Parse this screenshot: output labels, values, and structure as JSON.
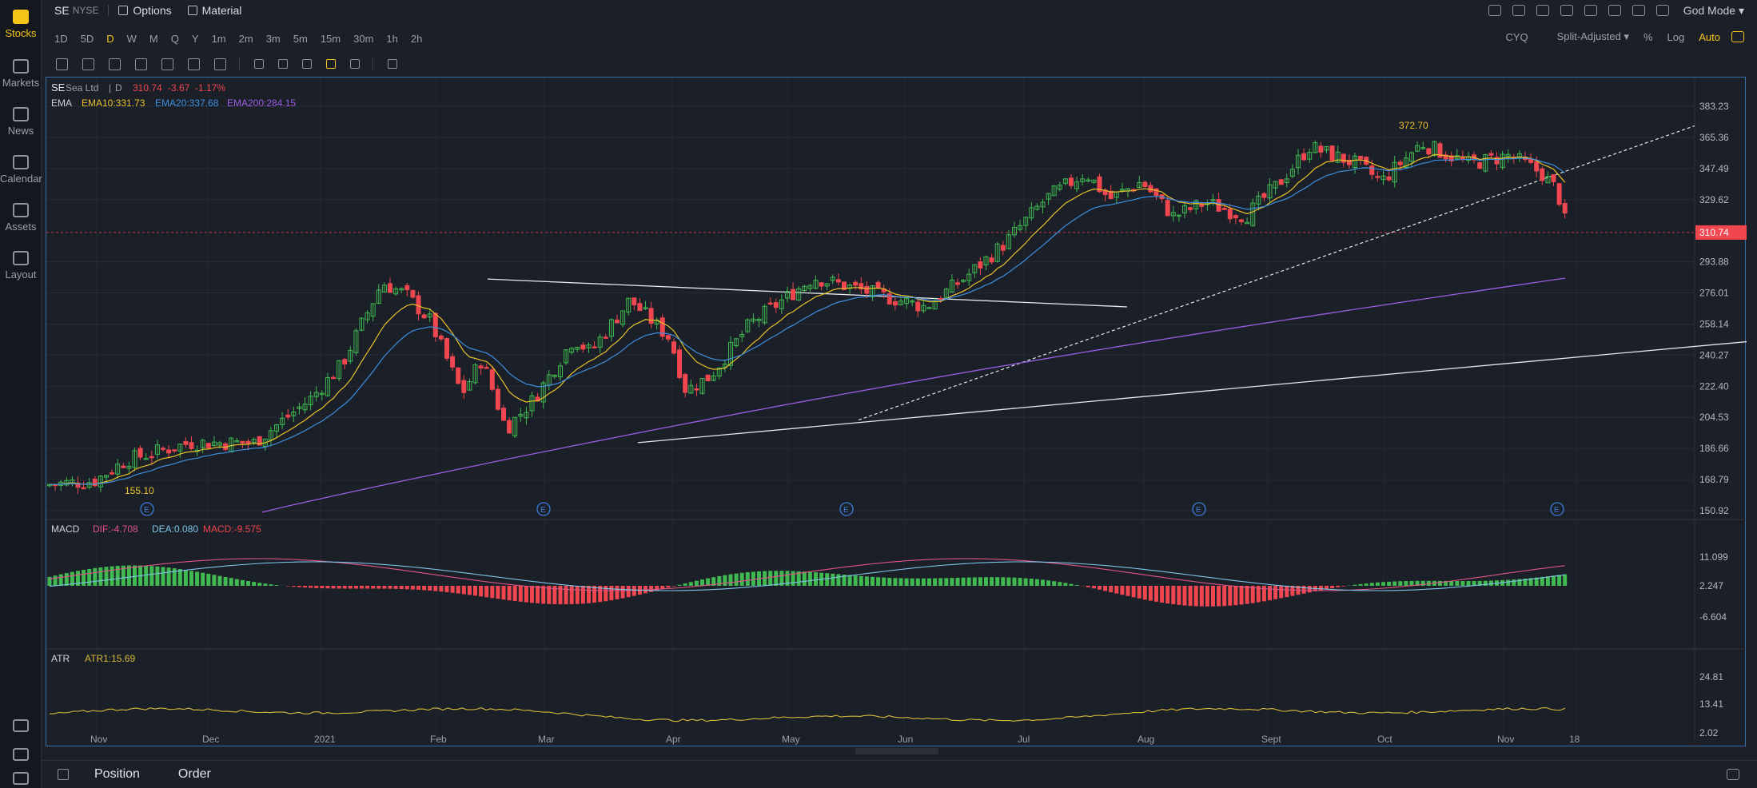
{
  "rail": {
    "items": [
      {
        "label": "Stocks",
        "icon": "stocks-icon"
      },
      {
        "label": "Markets",
        "icon": "markets-icon"
      },
      {
        "label": "News",
        "icon": "news-icon"
      },
      {
        "label": "Calendar",
        "icon": "calendar-icon"
      },
      {
        "label": "Assets",
        "icon": "assets-icon"
      },
      {
        "label": "Layout",
        "icon": "layout-icon"
      }
    ]
  },
  "topbar": {
    "symbol": "SE",
    "exchange": "NYSE",
    "options_label": "Options",
    "material_label": "Material",
    "mode_label": "God Mode"
  },
  "intervals": [
    "1D",
    "5D",
    "D",
    "W",
    "M",
    "Q",
    "Y",
    "1m",
    "2m",
    "3m",
    "5m",
    "15m",
    "30m",
    "1h",
    "2h"
  ],
  "active_interval": "D",
  "chart_options": {
    "cyq": "CYQ",
    "adjust": "Split-Adjusted",
    "percent": "%",
    "log": "Log",
    "auto": "Auto"
  },
  "chart": {
    "title_symbol": "SE",
    "title_name": "Sea Ltd",
    "title_interval": "D",
    "last_price": "310.74",
    "change": "-3.67",
    "change_pct": "-1.17%",
    "ema_label": "EMA",
    "ema10": "EMA10:331.73",
    "ema20": "EMA20:337.68",
    "ema200": "EMA200:284.15",
    "high_label": "372.70",
    "low_label": "155.10",
    "price_ticks": [
      "383.23",
      "365.36",
      "347.49",
      "329.62",
      "310.74",
      "293.88",
      "276.01",
      "258.14",
      "240.27",
      "222.40",
      "204.53",
      "186.66",
      "168.79",
      "150.92"
    ],
    "earnings_marker": "E",
    "macd_label": "MACD",
    "macd_dif": "DIF:-4.708",
    "macd_dea": "DEA:0.080",
    "macd_val": "MACD:-9.575",
    "macd_ticks": [
      "11.099",
      "2.247",
      "-6.604"
    ],
    "atr_label": "ATR",
    "atr_val": "ATR1:15.69",
    "atr_ticks": [
      "24.81",
      "13.41",
      "2.02"
    ],
    "time_labels": [
      "Nov",
      "Dec",
      "2021",
      "Feb",
      "Mar",
      "Apr",
      "May",
      "Jun",
      "Jul",
      "Aug",
      "Sept",
      "Oct",
      "Nov",
      "18"
    ]
  },
  "colors": {
    "up": "#3fb950",
    "down": "#f0464f",
    "ema10": "#e9c22a",
    "ema20": "#3d8fe0",
    "ema200": "#9b5de5",
    "dif": "#e0558a",
    "dea": "#7fc4e8",
    "atr": "#d7b93a",
    "accent": "#f5c518"
  },
  "bottombar": {
    "position_label": "Position",
    "order_label": "Order"
  }
}
